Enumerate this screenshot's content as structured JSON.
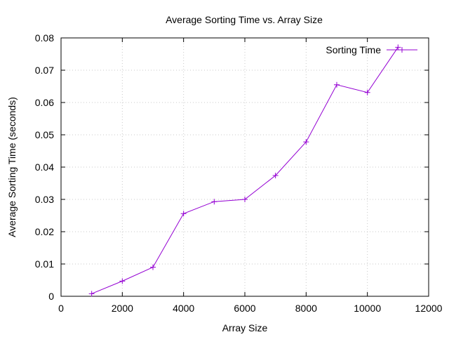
{
  "chart_data": {
    "type": "line",
    "title": "Average Sorting Time vs. Array Size",
    "xlabel": "Array Size",
    "ylabel": "Average Sorting Time (seconds)",
    "xlim": [
      0,
      12000
    ],
    "ylim": [
      0,
      0.08
    ],
    "x_ticks": [
      "0",
      "2000",
      "4000",
      "6000",
      "8000",
      "10000",
      "12000"
    ],
    "y_ticks": [
      "0",
      "0.01",
      "0.02",
      "0.03",
      "0.04",
      "0.05",
      "0.06",
      "0.07",
      "0.08"
    ],
    "grid": true,
    "legend_position": "top-right",
    "series": [
      {
        "name": "Sorting Time",
        "color": "#9400d3",
        "marker": "plus",
        "x": [
          1000,
          2000,
          3000,
          4000,
          5000,
          6000,
          7000,
          8000,
          9000,
          10000,
          11000
        ],
        "y": [
          0.0008,
          0.0047,
          0.009,
          0.0256,
          0.0293,
          0.03,
          0.0374,
          0.0478,
          0.0655,
          0.0631,
          0.0771
        ]
      }
    ]
  }
}
